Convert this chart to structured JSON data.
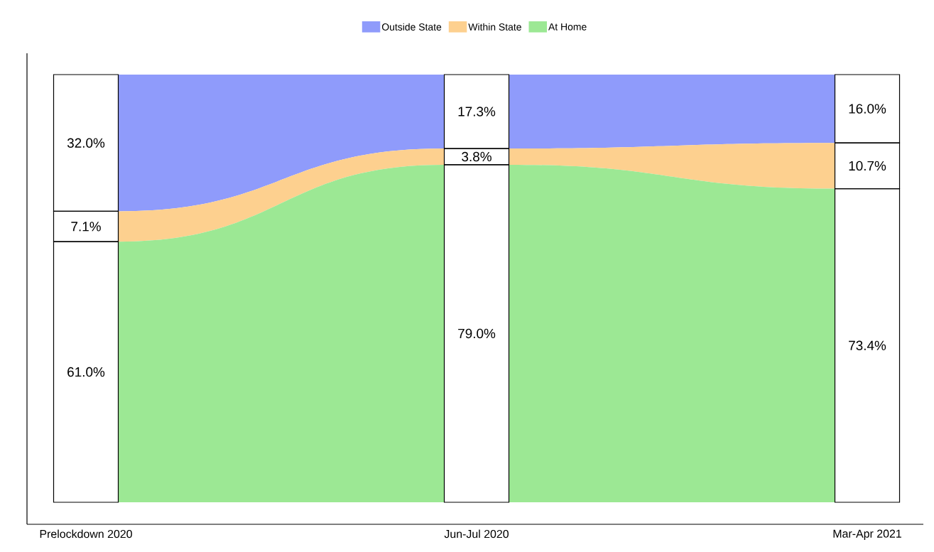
{
  "chart_data": {
    "type": "other",
    "categories": [
      "Prelockdown 2020",
      "Jun-Jul 2020",
      "Mar-Apr 2021"
    ],
    "series": [
      {
        "name": "Outside State",
        "color": "#8f9bfb",
        "values": [
          32.0,
          17.3,
          16.0
        ],
        "value_labels": [
          "32.0%",
          "17.3%",
          "16.0%"
        ]
      },
      {
        "name": "Within State",
        "color": "#fdd08f",
        "values": [
          7.1,
          3.8,
          10.7
        ],
        "value_labels": [
          "7.1%",
          "3.8%",
          "10.7%"
        ]
      },
      {
        "name": "At Home",
        "color": "#9ce894",
        "values": [
          61.0,
          79.0,
          73.4
        ],
        "value_labels": [
          "61.0%",
          "79.0%",
          "73.4%"
        ]
      }
    ],
    "legend": "top"
  }
}
